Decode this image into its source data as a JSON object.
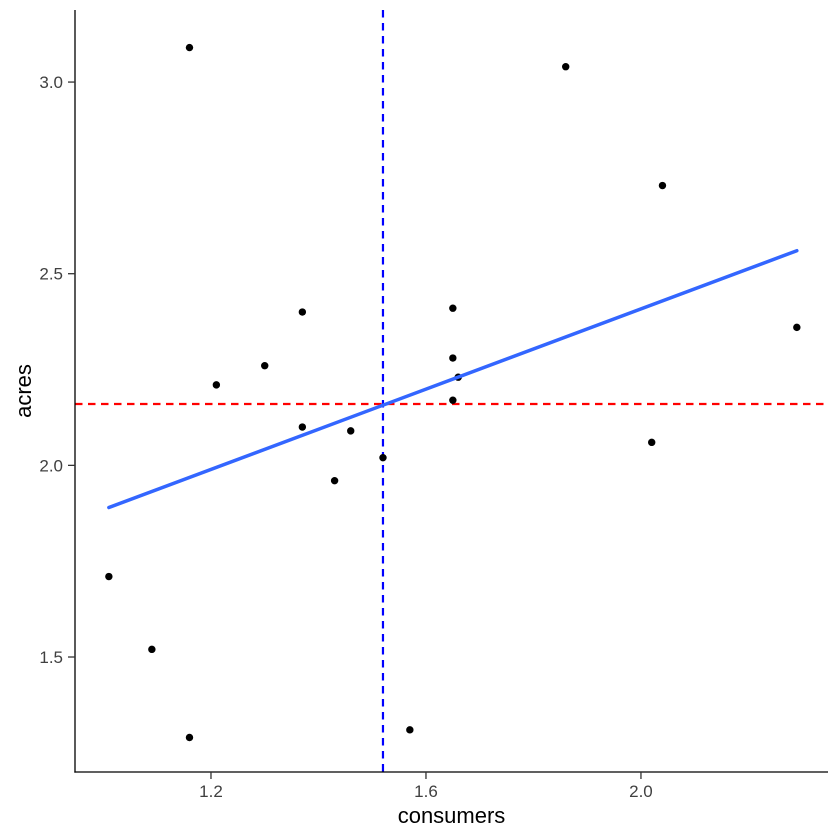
{
  "chart_data": {
    "type": "scatter",
    "title": "",
    "xlabel": "consumers",
    "ylabel": "acres",
    "x_ticks": [
      1.2,
      1.6,
      2.0
    ],
    "y_ticks": [
      1.5,
      2.0,
      2.5,
      3.0
    ],
    "xlim": [
      0.947,
      2.348
    ],
    "ylim": [
      1.2,
      3.188
    ],
    "grid": "off",
    "legend": "none",
    "points": [
      {
        "x": 1.16,
        "y": 3.09
      },
      {
        "x": 1.86,
        "y": 3.04
      },
      {
        "x": 2.04,
        "y": 2.73
      },
      {
        "x": 1.65,
        "y": 2.41
      },
      {
        "x": 1.37,
        "y": 2.4
      },
      {
        "x": 2.29,
        "y": 2.36
      },
      {
        "x": 1.65,
        "y": 2.28
      },
      {
        "x": 1.3,
        "y": 2.26
      },
      {
        "x": 1.66,
        "y": 2.23
      },
      {
        "x": 1.21,
        "y": 2.21
      },
      {
        "x": 1.65,
        "y": 2.17
      },
      {
        "x": 1.37,
        "y": 2.1
      },
      {
        "x": 1.46,
        "y": 2.09
      },
      {
        "x": 2.02,
        "y": 2.06
      },
      {
        "x": 1.52,
        "y": 2.02
      },
      {
        "x": 1.43,
        "y": 1.96
      },
      {
        "x": 1.01,
        "y": 1.71
      },
      {
        "x": 1.09,
        "y": 1.52
      },
      {
        "x": 1.57,
        "y": 1.31
      },
      {
        "x": 1.16,
        "y": 1.29
      }
    ],
    "trend_line": {
      "style": "solid",
      "x_start": 1.01,
      "y_start": 1.89,
      "x_end": 2.29,
      "y_end": 2.56
    },
    "mean_x_line": {
      "style": "dashed",
      "x": 1.52
    },
    "mean_y_line": {
      "style": "dashed",
      "y": 2.16
    },
    "colors": {
      "points": "#000000",
      "trend_line": "#3366FF",
      "mean_x_line": "#0000FF",
      "mean_y_line": "#FF0000",
      "axis_line": "#000000",
      "tick_label": "#404040",
      "background": "#FFFFFF"
    }
  }
}
